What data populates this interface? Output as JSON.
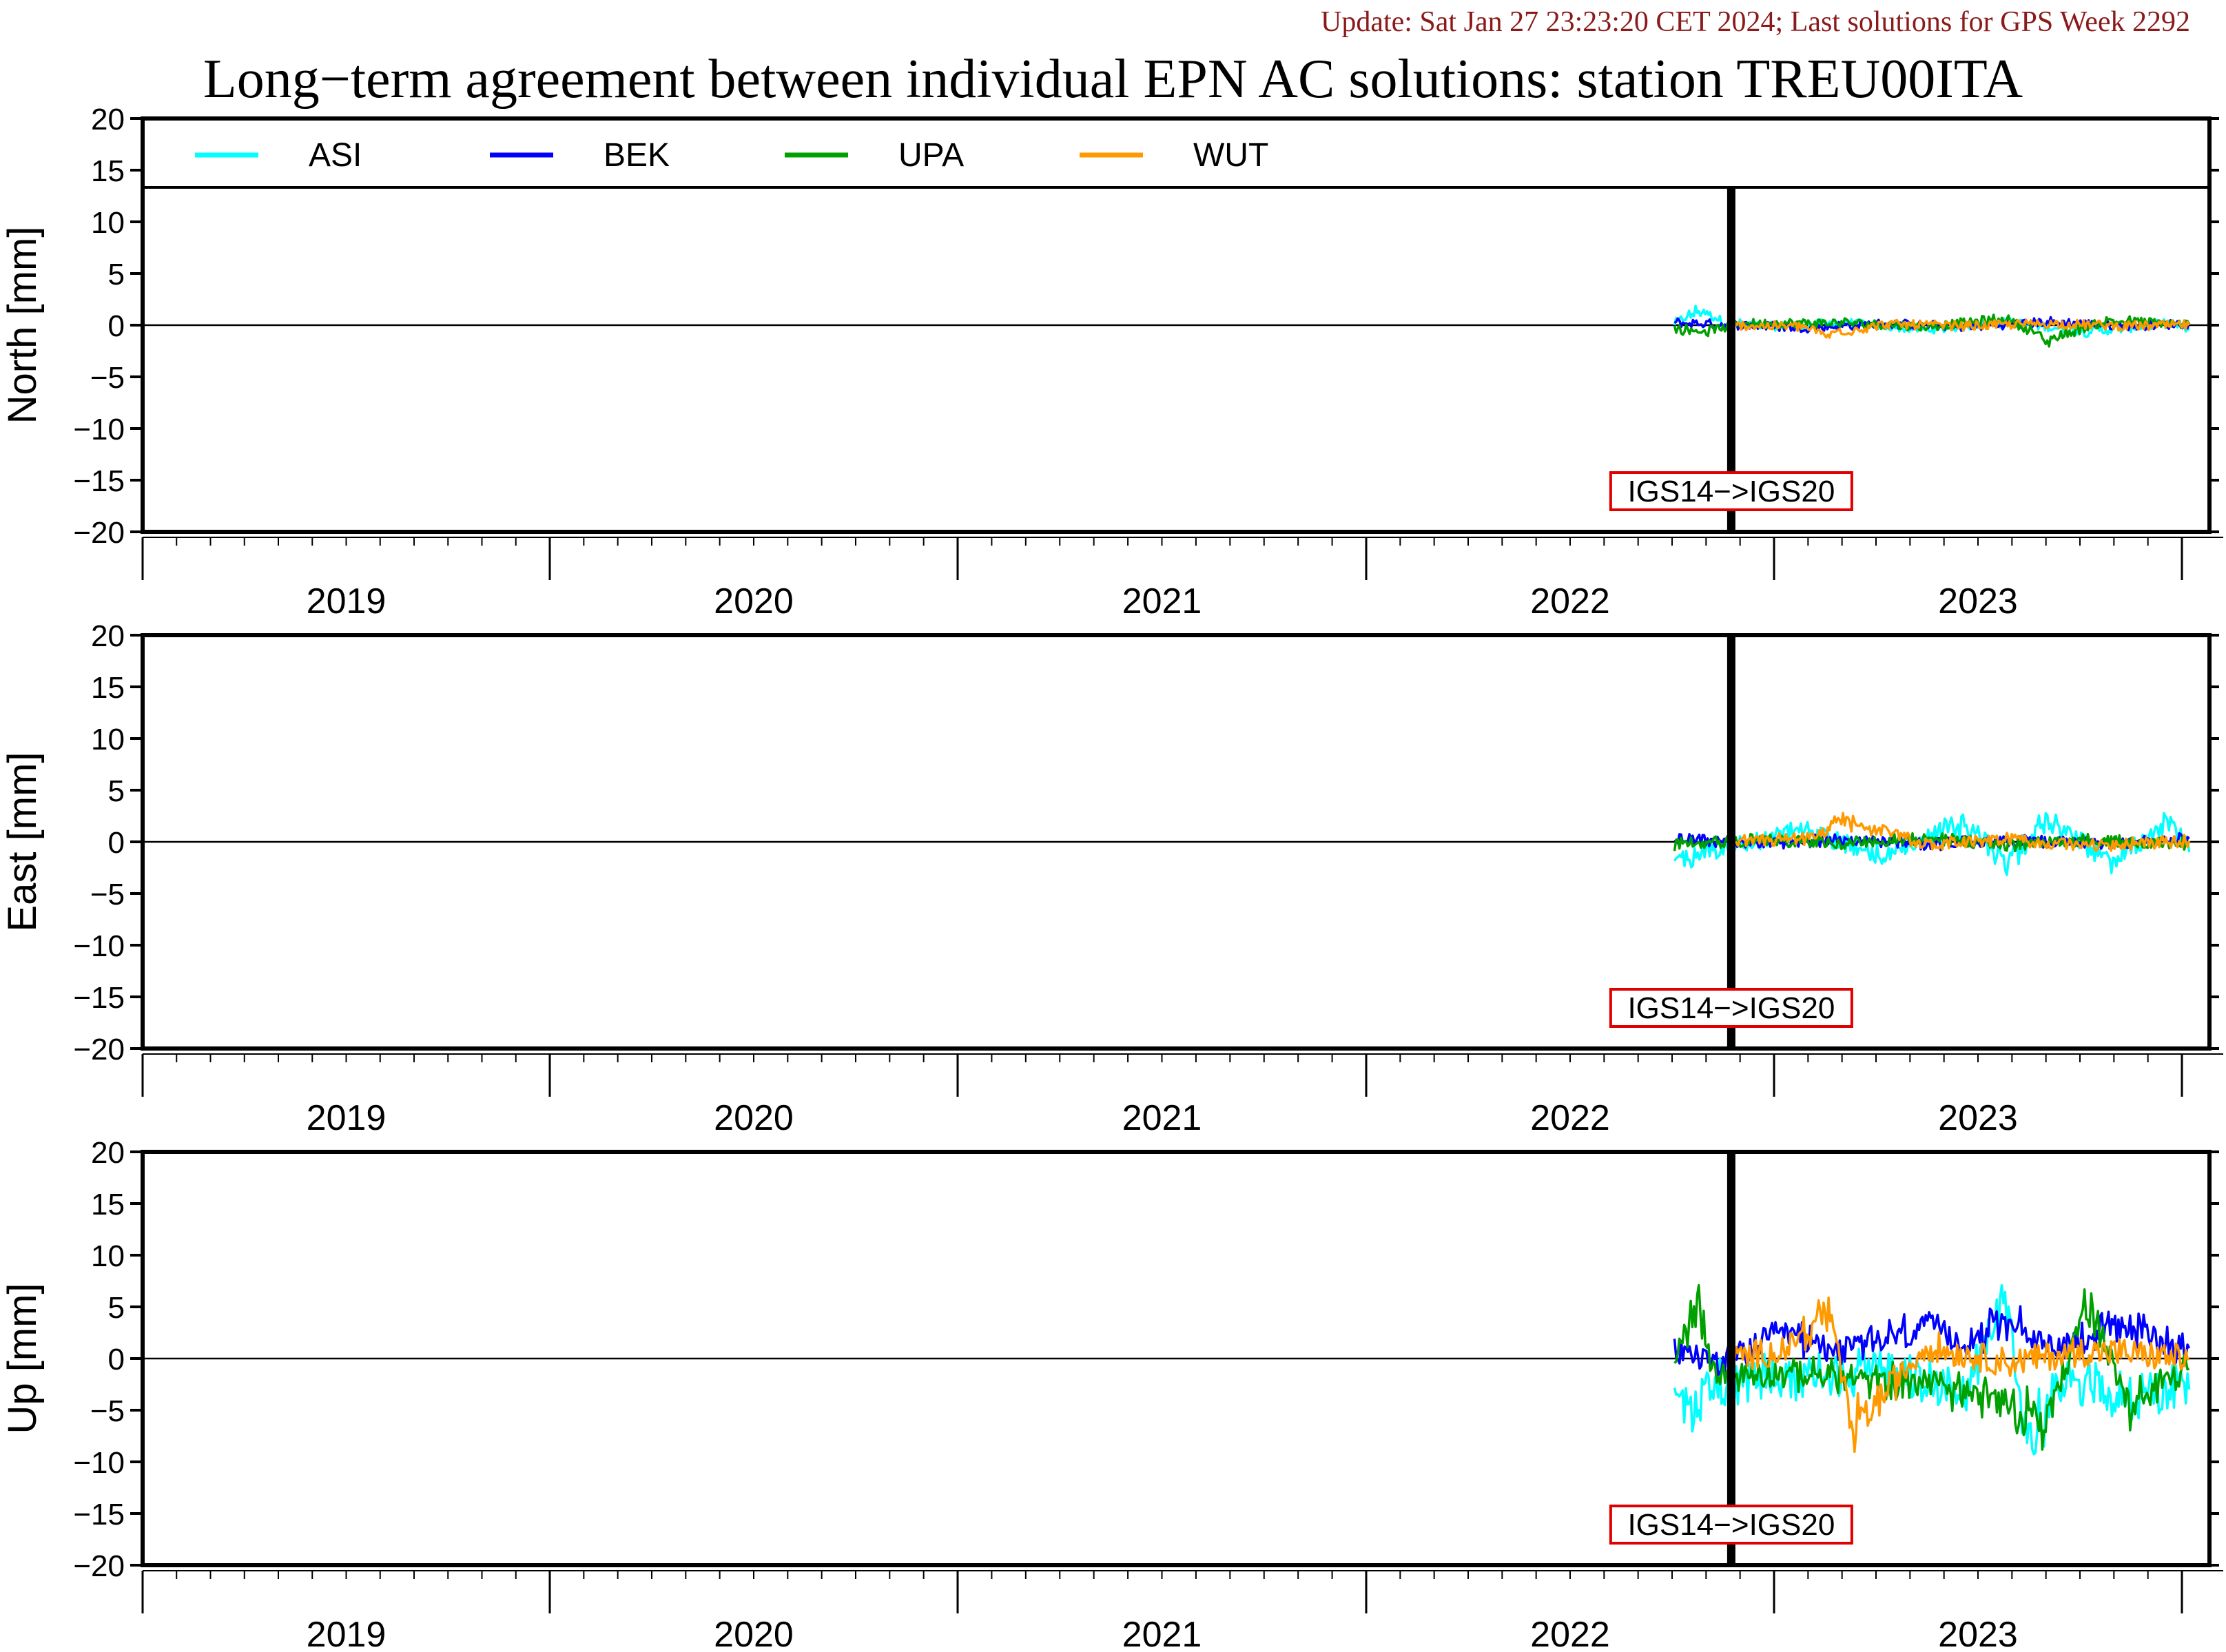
{
  "header": {
    "update": "Update: Sat Jan 27 23:23:20 CET 2024; Last solutions for GPS Week 2292",
    "title": "Long−term agreement between individual EPN AC solutions: station TREU00ITA"
  },
  "colors": {
    "ASI": "#00ffff",
    "BEK": "#0000ff",
    "UPA": "#00a000",
    "WUT": "#ff9900",
    "annotation": "#e00000"
  },
  "chart_data": [
    {
      "type": "line",
      "ylabel": "North [mm]",
      "ylim": [
        -20,
        20
      ],
      "yticks": [
        20,
        15,
        10,
        5,
        0,
        -5,
        -10,
        -15,
        -20
      ],
      "xlim": [
        2018.5,
        2023.6
      ],
      "xtick_labels": [
        "2019",
        "2020",
        "2021",
        "2022",
        "2023"
      ],
      "legend": {
        "placement": "top-left",
        "entries": [
          "ASI",
          "BEK",
          "UPA",
          "WUT"
        ]
      },
      "annotation": {
        "text": "IGS14−>IGS20",
        "x": 2022.42
      },
      "series": [
        {
          "name": "ASI",
          "x": [
            2022.28,
            2022.34,
            2022.4,
            2022.5,
            2022.7,
            2022.9,
            2023.1,
            2023.3,
            2023.5,
            2023.55
          ],
          "values": [
            0.2,
            1.8,
            0.5,
            -0.2,
            0.3,
            -0.6,
            0.4,
            -0.8,
            0.2,
            -0.5
          ]
        },
        {
          "name": "BEK",
          "x": [
            2022.28,
            2022.4,
            2022.6,
            2022.8,
            2023.0,
            2023.2,
            2023.4,
            2023.55
          ],
          "values": [
            0.3,
            0.1,
            -0.3,
            0.2,
            -0.2,
            0.4,
            -0.1,
            0.2
          ]
        },
        {
          "name": "UPA",
          "x": [
            2022.28,
            2022.35,
            2022.45,
            2022.7,
            2022.9,
            2023.1,
            2023.2,
            2023.35,
            2023.55
          ],
          "values": [
            -0.5,
            -0.8,
            0.2,
            0.3,
            -0.2,
            0.8,
            -1.8,
            0.6,
            0.1
          ]
        },
        {
          "name": "WUT",
          "x": [
            2022.42,
            2022.6,
            2022.65,
            2022.8,
            2023.0,
            2023.2,
            2023.4,
            2023.55
          ],
          "values": [
            0.0,
            -0.2,
            -1.2,
            0.1,
            -0.1,
            0.2,
            -0.1,
            0.0
          ]
        }
      ]
    },
    {
      "type": "line",
      "ylabel": "East [mm]",
      "ylim": [
        -20,
        20
      ],
      "yticks": [
        20,
        15,
        10,
        5,
        0,
        -5,
        -10,
        -15,
        -20
      ],
      "xlim": [
        2018.5,
        2023.6
      ],
      "xtick_labels": [
        "2019",
        "2020",
        "2021",
        "2022",
        "2023"
      ],
      "annotation": {
        "text": "IGS14−>IGS20",
        "x": 2022.42
      },
      "series": [
        {
          "name": "ASI",
          "x": [
            2022.28,
            2022.35,
            2022.45,
            2022.6,
            2022.8,
            2023.0,
            2023.1,
            2023.2,
            2023.35,
            2023.5,
            2023.55
          ],
          "values": [
            -2.5,
            -1.0,
            -0.5,
            1.5,
            -2.0,
            2.5,
            -3.0,
            3.0,
            -2.5,
            2.5,
            -1.0
          ]
        },
        {
          "name": "BEK",
          "x": [
            2022.28,
            2022.5,
            2022.7,
            2022.9,
            2023.1,
            2023.3,
            2023.55
          ],
          "values": [
            0.4,
            -0.2,
            0.3,
            -0.3,
            0.2,
            -0.2,
            0.3
          ]
        },
        {
          "name": "UPA",
          "x": [
            2022.28,
            2022.5,
            2022.7,
            2022.9,
            2023.1,
            2023.3,
            2023.55
          ],
          "values": [
            -0.3,
            0.3,
            -0.2,
            0.5,
            -0.4,
            0.3,
            -0.2
          ]
        },
        {
          "name": "WUT",
          "x": [
            2022.42,
            2022.6,
            2022.7,
            2022.9,
            2023.1,
            2023.3,
            2023.55
          ],
          "values": [
            0.1,
            0.4,
            2.5,
            -0.3,
            0.3,
            -0.4,
            0.1
          ]
        }
      ]
    },
    {
      "type": "line",
      "ylabel": "Up [mm]",
      "ylim": [
        -20,
        20
      ],
      "yticks": [
        20,
        15,
        10,
        5,
        0,
        -5,
        -10,
        -15,
        -20
      ],
      "xlim": [
        2018.5,
        2023.6
      ],
      "xtick_labels": [
        "2019",
        "2020",
        "2021",
        "2022",
        "2023"
      ],
      "annotation": {
        "text": "IGS14−>IGS20",
        "x": 2022.42
      },
      "series": [
        {
          "name": "ASI",
          "x": [
            2022.28,
            2022.32,
            2022.36,
            2022.42,
            2022.6,
            2022.8,
            2023.0,
            2023.1,
            2023.15,
            2023.25,
            2023.4,
            2023.55
          ],
          "values": [
            -3.0,
            -7.5,
            -2.5,
            -3.0,
            -2.0,
            -1.5,
            -4.0,
            8.5,
            -11.0,
            -2.0,
            -5.5,
            -3.0
          ]
        },
        {
          "name": "BEK",
          "x": [
            2022.28,
            2022.4,
            2022.55,
            2022.7,
            2022.9,
            2023.0,
            2023.1,
            2023.2,
            2023.4,
            2023.55
          ],
          "values": [
            1.0,
            -0.5,
            3.0,
            1.0,
            4.0,
            2.0,
            5.0,
            1.5,
            4.0,
            1.0
          ]
        },
        {
          "name": "UPA",
          "x": [
            2022.28,
            2022.34,
            2022.38,
            2022.5,
            2022.7,
            2022.9,
            2023.1,
            2023.2,
            2023.3,
            2023.4,
            2023.55
          ],
          "values": [
            1.0,
            6.0,
            -2.5,
            -1.5,
            -2.5,
            -3.0,
            -5.5,
            -8.0,
            7.5,
            -6.0,
            -1.0
          ]
        },
        {
          "name": "WUT",
          "x": [
            2022.42,
            2022.55,
            2022.66,
            2022.72,
            2022.9,
            2023.1,
            2023.3,
            2023.55
          ],
          "values": [
            0.0,
            1.0,
            6.0,
            -9.0,
            1.5,
            -0.5,
            1.0,
            0.0
          ]
        }
      ]
    }
  ]
}
